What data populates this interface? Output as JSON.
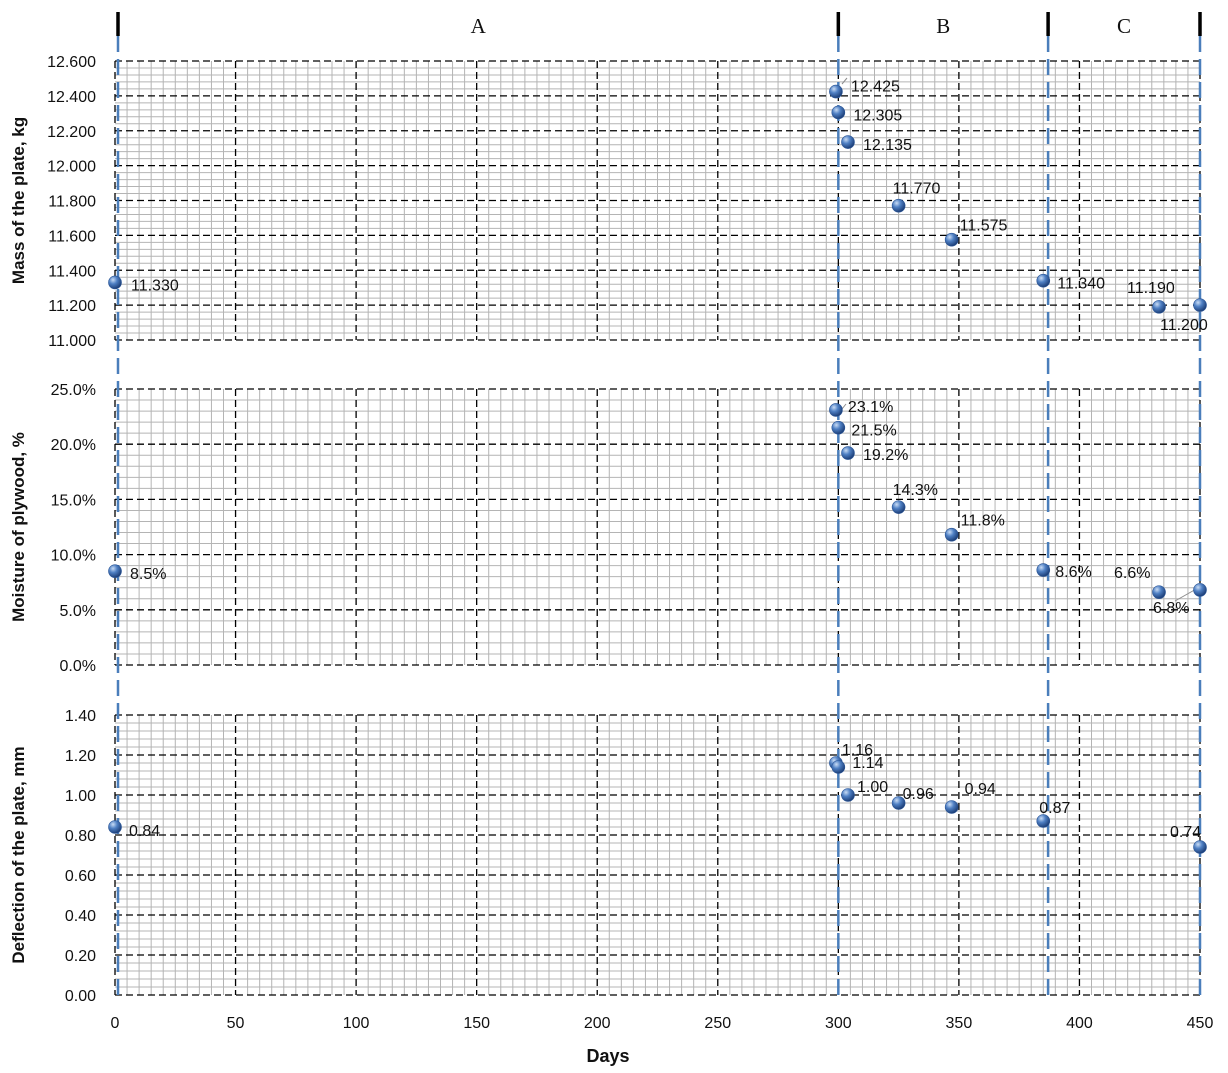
{
  "chart_data": {
    "type": "scatter",
    "x_axis": {
      "label": "Days",
      "min": 0,
      "max": 450,
      "ticks": [
        0,
        50,
        100,
        150,
        200,
        250,
        300,
        350,
        400,
        450
      ],
      "tick_labels": [
        "0",
        "50",
        "100",
        "150",
        "200",
        "250",
        "300",
        "350",
        "400",
        "450"
      ]
    },
    "phases": [
      {
        "name": "A",
        "start": 0,
        "end": 300
      },
      {
        "name": "B",
        "start": 300,
        "end": 387
      },
      {
        "name": "C",
        "start": 387,
        "end": 450
      }
    ],
    "panels": [
      {
        "id": "mass",
        "ylabel": "Mass of the plate, kg",
        "ylim": [
          11.0,
          12.6
        ],
        "yticks": [
          11.0,
          11.2,
          11.4,
          11.6,
          11.8,
          12.0,
          12.2,
          12.4,
          12.6
        ],
        "ytick_labels": [
          "11.000",
          "11.200",
          "11.400",
          "11.600",
          "11.800",
          "12.000",
          "12.200",
          "12.400",
          "12.600"
        ],
        "points": [
          {
            "x": 0,
            "y": 11.33,
            "label": "11.330"
          },
          {
            "x": 299,
            "y": 12.425,
            "label": "12.425"
          },
          {
            "x": 300,
            "y": 12.305,
            "label": "12.305"
          },
          {
            "x": 304,
            "y": 12.135,
            "label": "12.135"
          },
          {
            "x": 325,
            "y": 11.77,
            "label": "11.770"
          },
          {
            "x": 347,
            "y": 11.575,
            "label": "11.575"
          },
          {
            "x": 385,
            "y": 11.34,
            "label": "11.340"
          },
          {
            "x": 433,
            "y": 11.19,
            "label": "11.190"
          },
          {
            "x": 450,
            "y": 11.2,
            "label": "11.200"
          }
        ]
      },
      {
        "id": "moisture",
        "ylabel": "Moisture of plywood, %",
        "ylim": [
          0,
          25
        ],
        "yticks": [
          0,
          5,
          10,
          15,
          20,
          25
        ],
        "ytick_labels": [
          "0.0%",
          "5.0%",
          "10.0%",
          "15.0%",
          "20.0%",
          "25.0%"
        ],
        "points": [
          {
            "x": 0,
            "y": 8.5,
            "label": "8.5%"
          },
          {
            "x": 299,
            "y": 23.1,
            "label": "23.1%"
          },
          {
            "x": 300,
            "y": 21.5,
            "label": "21.5%"
          },
          {
            "x": 304,
            "y": 19.2,
            "label": "19.2%"
          },
          {
            "x": 325,
            "y": 14.3,
            "label": "14.3%"
          },
          {
            "x": 347,
            "y": 11.8,
            "label": "11.8%"
          },
          {
            "x": 385,
            "y": 8.6,
            "label": "8.6%"
          },
          {
            "x": 433,
            "y": 6.6,
            "label": "6.6%"
          },
          {
            "x": 450,
            "y": 6.8,
            "label": "6.8%"
          }
        ]
      },
      {
        "id": "deflection",
        "ylabel": "Deflection of the plate, mm",
        "ylim": [
          0,
          1.4
        ],
        "yticks": [
          0,
          0.2,
          0.4,
          0.6,
          0.8,
          1.0,
          1.2,
          1.4
        ],
        "ytick_labels": [
          "0.00",
          "0.20",
          "0.40",
          "0.60",
          "0.80",
          "1.00",
          "1.20",
          "1.40"
        ],
        "points": [
          {
            "x": 0,
            "y": 0.84,
            "label": "0.84"
          },
          {
            "x": 299,
            "y": 1.16,
            "label": "1.16"
          },
          {
            "x": 300,
            "y": 1.14,
            "label": "1.14"
          },
          {
            "x": 304,
            "y": 1.0,
            "label": "1.00"
          },
          {
            "x": 325,
            "y": 0.96,
            "label": "0.96"
          },
          {
            "x": 347,
            "y": 0.94,
            "label": "0.94"
          },
          {
            "x": 385,
            "y": 0.87,
            "label": "0.87"
          },
          {
            "x": 450,
            "y": 0.74,
            "label": "0.74"
          }
        ]
      }
    ],
    "colors": {
      "marker": "#3f6fb5",
      "phase_line": "#4a7ebb",
      "major_grid": "#000000",
      "minor_grid": "#b4b4b4"
    },
    "grid": true
  }
}
